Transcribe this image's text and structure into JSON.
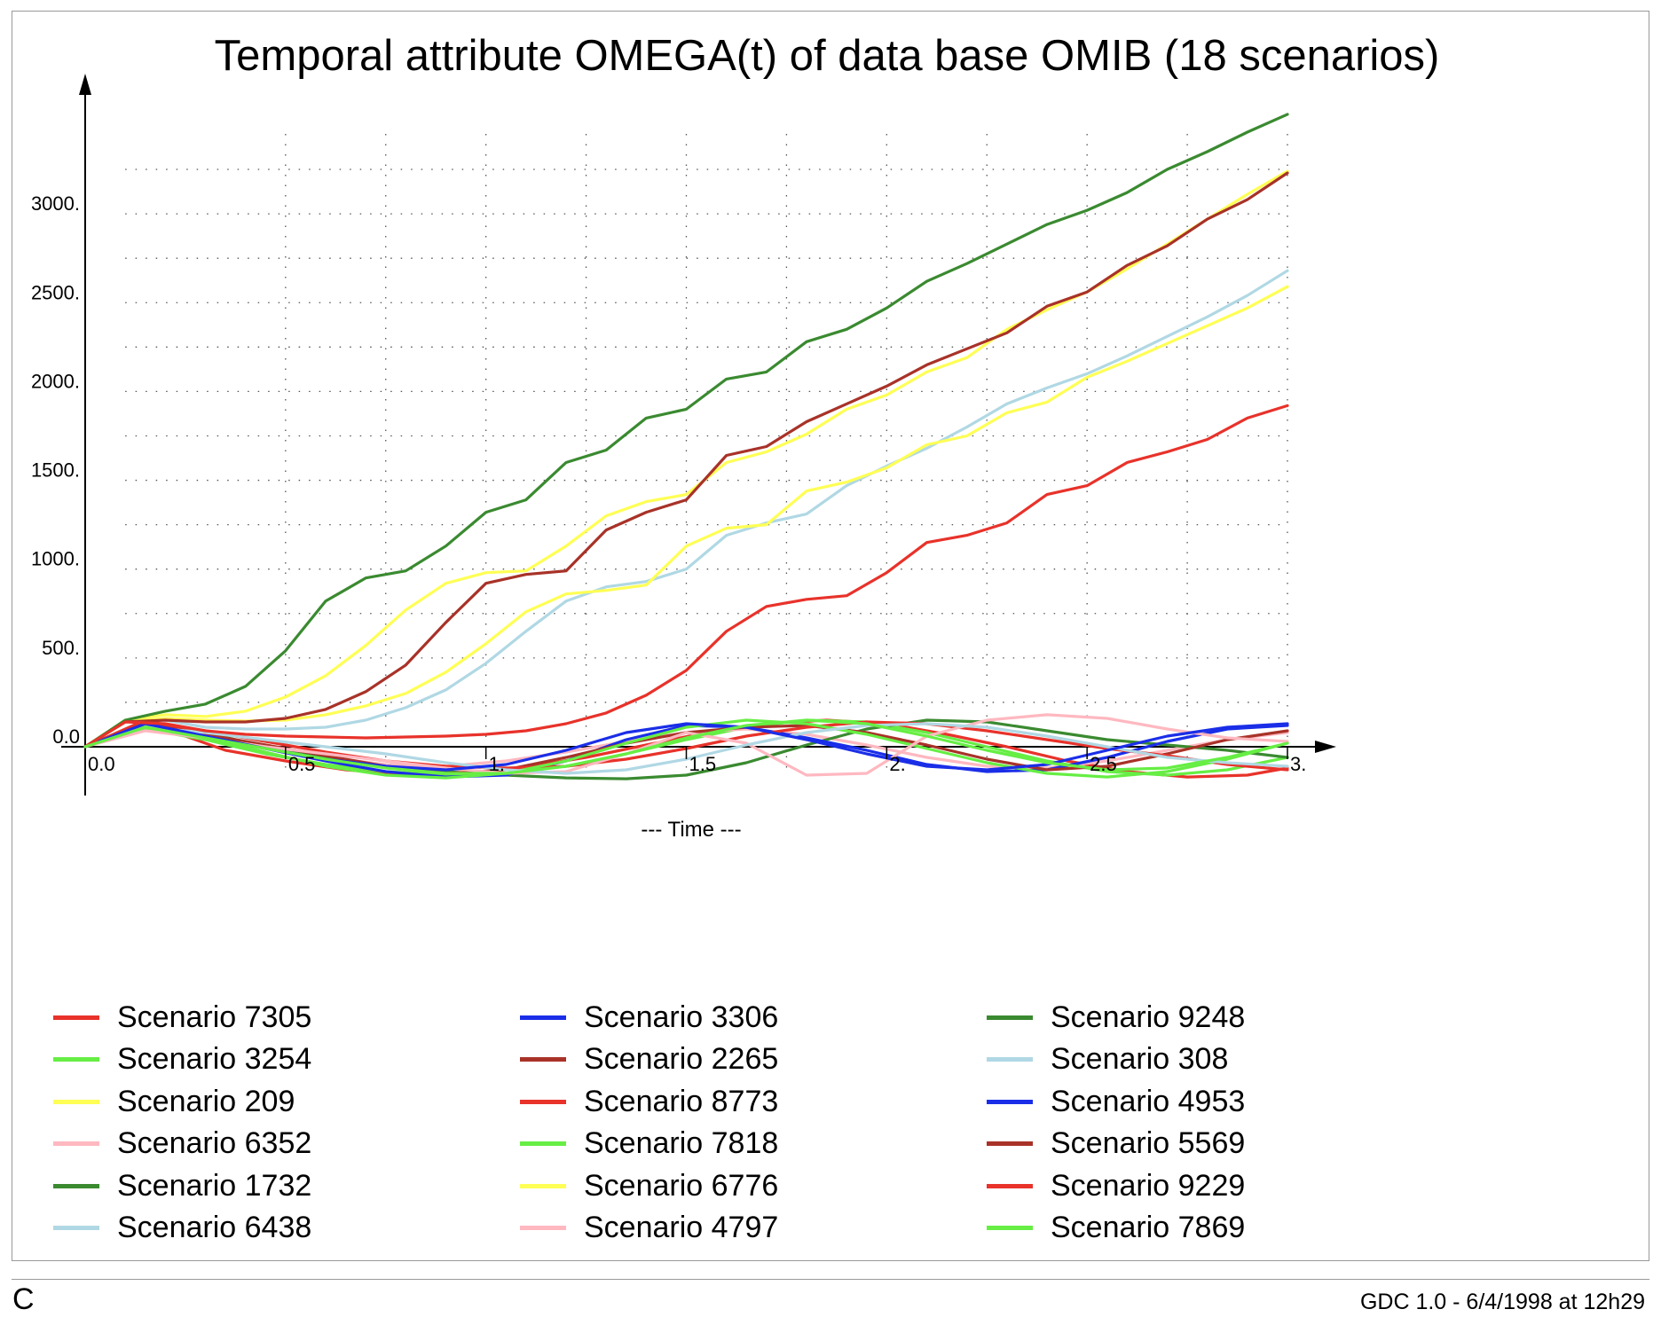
{
  "chart_data": {
    "type": "line",
    "title": "Temporal attribute OMEGA(t) of data base OMIB (18 scenarios)",
    "xlabel": "--- Time ---",
    "ylabel": "",
    "xlim": [
      0,
      3
    ],
    "ylim": [
      -260,
      3780
    ],
    "grid": true,
    "legend_position": "bottom",
    "x_tick_labels": [
      {
        "value": 0,
        "label": "0.0"
      },
      {
        "value": 0.5,
        "label": "0.5"
      },
      {
        "value": 1,
        "label": "1."
      },
      {
        "value": 1.5,
        "label": "1.5"
      },
      {
        "value": 2,
        "label": "2."
      },
      {
        "value": 2.5,
        "label": "2.5"
      },
      {
        "value": 3,
        "label": "3."
      }
    ],
    "y_tick_labels": [
      {
        "value": 0,
        "label": "0.0"
      },
      {
        "value": 500,
        "label": "500."
      },
      {
        "value": 1000,
        "label": "1000."
      },
      {
        "value": 1500,
        "label": "1500."
      },
      {
        "value": 2000,
        "label": "2000."
      },
      {
        "value": 2500,
        "label": "2500."
      },
      {
        "value": 3000,
        "label": "3000."
      }
    ],
    "series": [
      {
        "name": "Scenario 7305",
        "color": "#e8322a",
        "x": [
          0,
          0.15,
          0.25,
          0.35,
          0.5,
          0.65,
          0.8,
          0.95,
          1.1,
          1.25,
          1.4,
          1.55,
          1.7,
          1.85,
          2.0,
          2.15,
          2.3,
          2.45,
          2.6,
          2.75,
          2.9,
          3.0
        ],
        "y": [
          0,
          150,
          60,
          -20,
          -80,
          -130,
          -155,
          -150,
          -115,
          -60,
          10,
          80,
          130,
          150,
          130,
          70,
          0,
          -80,
          -140,
          -170,
          -160,
          -120
        ]
      },
      {
        "name": "Scenario 3254",
        "color": "#66ee44",
        "x": [
          0,
          0.15,
          0.3,
          0.45,
          0.6,
          0.75,
          0.9,
          1.05,
          1.2,
          1.35,
          1.5,
          1.65,
          1.8,
          1.95,
          2.1,
          2.25,
          2.4,
          2.55,
          2.7,
          2.85,
          3.0
        ],
        "y": [
          0,
          100,
          40,
          -40,
          -100,
          -140,
          -160,
          -150,
          -110,
          -40,
          40,
          110,
          150,
          140,
          80,
          0,
          -80,
          -140,
          -160,
          -130,
          -60
        ]
      },
      {
        "name": "Scenario 209",
        "color": "#ffff55",
        "x": [
          0,
          0.1,
          0.2,
          0.3,
          0.4,
          0.5,
          0.6,
          0.7,
          0.8,
          0.9,
          1.0,
          1.1,
          1.2,
          1.3,
          1.4,
          1.5,
          1.6,
          1.7,
          1.8,
          1.9,
          2.0,
          2.1,
          2.2,
          2.3,
          2.4,
          2.5,
          2.6,
          2.7,
          2.8,
          2.9,
          3.0
        ],
        "y": [
          0,
          150,
          180,
          170,
          200,
          280,
          400,
          570,
          770,
          920,
          980,
          990,
          1130,
          1300,
          1380,
          1420,
          1600,
          1660,
          1760,
          1900,
          1980,
          2110,
          2190,
          2350,
          2460,
          2560,
          2690,
          2830,
          2970,
          3110,
          3240
        ]
      },
      {
        "name": "Scenario 6352",
        "color": "#ffb8c0",
        "x": [
          0,
          0.15,
          0.3,
          0.45,
          0.6,
          0.75,
          0.9,
          1.05,
          1.2,
          1.35,
          1.5,
          1.65,
          1.8,
          1.95,
          2.1,
          2.25,
          2.4,
          2.55,
          2.7,
          2.85,
          3.0
        ],
        "y": [
          0,
          110,
          60,
          0,
          -60,
          -100,
          -110,
          -80,
          -30,
          30,
          80,
          100,
          70,
          10,
          -60,
          -110,
          -120,
          -80,
          -20,
          40,
          80
        ]
      },
      {
        "name": "Scenario 1732",
        "color": "#3a8a30",
        "x": [
          0,
          0.15,
          0.3,
          0.45,
          0.6,
          0.75,
          0.9,
          1.05,
          1.2,
          1.35,
          1.5,
          1.65,
          1.8,
          1.95,
          2.1,
          2.25,
          2.4,
          2.55,
          2.7,
          2.85,
          3.0
        ],
        "y": [
          0,
          140,
          80,
          0,
          -60,
          -110,
          -140,
          -160,
          -175,
          -180,
          -160,
          -90,
          10,
          100,
          150,
          140,
          90,
          40,
          10,
          -20,
          -60
        ]
      },
      {
        "name": "Scenario 6438",
        "color": "#b0d8e4",
        "x": [
          0,
          0.1,
          0.2,
          0.3,
          0.4,
          0.5,
          0.6,
          0.7,
          0.8,
          0.9,
          1.0,
          1.1,
          1.2,
          1.3,
          1.4,
          1.5,
          1.6,
          1.7,
          1.8,
          1.9,
          2.0,
          2.1,
          2.2,
          2.3,
          2.4,
          2.5,
          2.6,
          2.7,
          2.8,
          2.9,
          3.0
        ],
        "y": [
          0,
          140,
          150,
          110,
          100,
          100,
          110,
          150,
          220,
          320,
          470,
          650,
          820,
          900,
          930,
          1000,
          1190,
          1260,
          1310,
          1470,
          1580,
          1680,
          1800,
          1930,
          2020,
          2100,
          2200,
          2310,
          2420,
          2540,
          2680
        ]
      },
      {
        "name": "Scenario 3306",
        "color": "#1a2ee8",
        "x": [
          0,
          0.15,
          0.3,
          0.45,
          0.6,
          0.75,
          0.9,
          1.05,
          1.2,
          1.35,
          1.5,
          1.65,
          1.8,
          1.95,
          2.1,
          2.25,
          2.4,
          2.55,
          2.7,
          2.85,
          3.0
        ],
        "y": [
          0,
          120,
          60,
          -10,
          -80,
          -140,
          -170,
          -160,
          -80,
          40,
          120,
          110,
          50,
          -20,
          -100,
          -140,
          -130,
          -60,
          30,
          100,
          120
        ]
      },
      {
        "name": "Scenario 2265",
        "color": "#a83228",
        "x": [
          0,
          0.15,
          0.3,
          0.45,
          0.6,
          0.75,
          0.9,
          1.05,
          1.2,
          1.35,
          1.5,
          1.65,
          1.8,
          1.95,
          2.1,
          2.25,
          2.4,
          2.55,
          2.7,
          2.85,
          3.0
        ],
        "y": [
          0,
          140,
          70,
          10,
          -50,
          -110,
          -150,
          -130,
          -60,
          20,
          80,
          110,
          120,
          80,
          10,
          -70,
          -130,
          -110,
          -40,
          40,
          90
        ]
      },
      {
        "name": "Scenario 8773",
        "color": "#e8322a",
        "x": [
          0,
          0.15,
          0.3,
          0.45,
          0.6,
          0.75,
          0.9,
          1.05,
          1.2,
          1.35,
          1.5,
          1.65,
          1.8,
          1.95,
          2.1,
          2.25,
          2.4,
          2.55,
          2.7,
          2.85,
          3.0
        ],
        "y": [
          0,
          140,
          90,
          30,
          -30,
          -80,
          -110,
          -120,
          -110,
          -70,
          -10,
          60,
          110,
          140,
          130,
          90,
          40,
          -10,
          -50,
          -100,
          -130
        ]
      },
      {
        "name": "Scenario 7818",
        "color": "#66ee44",
        "x": [
          0,
          0.15,
          0.3,
          0.45,
          0.6,
          0.75,
          0.9,
          1.05,
          1.2,
          1.35,
          1.5,
          1.65,
          1.8,
          1.95,
          2.1,
          2.25,
          2.4,
          2.55,
          2.7,
          2.85,
          3.0
        ],
        "y": [
          0,
          120,
          50,
          -30,
          -110,
          -160,
          -175,
          -150,
          -80,
          20,
          110,
          150,
          130,
          70,
          -10,
          -90,
          -150,
          -170,
          -140,
          -70,
          20
        ]
      },
      {
        "name": "Scenario 6776",
        "color": "#ffff55",
        "x": [
          0,
          0.1,
          0.2,
          0.3,
          0.4,
          0.5,
          0.6,
          0.7,
          0.8,
          0.9,
          1.0,
          1.1,
          1.2,
          1.3,
          1.4,
          1.5,
          1.6,
          1.7,
          1.8,
          1.9,
          2.0,
          2.1,
          2.2,
          2.3,
          2.4,
          2.5,
          2.6,
          2.7,
          2.8,
          2.9,
          3.0
        ],
        "y": [
          0,
          140,
          160,
          150,
          145,
          150,
          180,
          230,
          300,
          420,
          580,
          760,
          860,
          880,
          910,
          1130,
          1230,
          1250,
          1440,
          1490,
          1570,
          1700,
          1750,
          1880,
          1940,
          2080,
          2170,
          2270,
          2370,
          2470,
          2590
        ]
      },
      {
        "name": "Scenario 4797",
        "color": "#ffb8c0",
        "x": [
          0,
          0.15,
          0.3,
          0.45,
          0.6,
          0.75,
          0.9,
          1.05,
          1.2,
          1.35,
          1.5,
          1.65,
          1.8,
          1.95,
          2.1,
          2.25,
          2.4,
          2.55,
          2.7,
          2.85,
          3.0
        ],
        "y": [
          0,
          90,
          50,
          0,
          -40,
          -80,
          -120,
          -150,
          -140,
          -40,
          80,
          20,
          -160,
          -150,
          60,
          150,
          180,
          160,
          100,
          50,
          30
        ]
      },
      {
        "name": "Scenario 9248",
        "color": "#3a8a30",
        "x": [
          0,
          0.1,
          0.2,
          0.3,
          0.4,
          0.5,
          0.6,
          0.7,
          0.8,
          0.9,
          1.0,
          1.1,
          1.2,
          1.3,
          1.4,
          1.5,
          1.6,
          1.7,
          1.8,
          1.9,
          2.0,
          2.1,
          2.2,
          2.3,
          2.4,
          2.5,
          2.6,
          2.7,
          2.8,
          2.9,
          3.0
        ],
        "y": [
          0,
          150,
          200,
          240,
          340,
          540,
          820,
          950,
          990,
          1130,
          1320,
          1390,
          1600,
          1670,
          1850,
          1900,
          2070,
          2110,
          2280,
          2350,
          2470,
          2620,
          2720,
          2830,
          2940,
          3020,
          3120,
          3250,
          3350,
          3460,
          3560
        ]
      },
      {
        "name": "Scenario 308",
        "color": "#b0d8e4",
        "x": [
          0,
          0.15,
          0.3,
          0.45,
          0.6,
          0.75,
          0.9,
          1.05,
          1.2,
          1.35,
          1.5,
          1.65,
          1.8,
          1.95,
          2.1,
          2.25,
          2.4,
          2.55,
          2.7,
          2.85,
          3.0
        ],
        "y": [
          0,
          110,
          80,
          40,
          0,
          -40,
          -90,
          -130,
          -150,
          -130,
          -70,
          10,
          80,
          120,
          130,
          110,
          60,
          0,
          -60,
          -90,
          -110
        ]
      },
      {
        "name": "Scenario 4953",
        "color": "#1a2ee8",
        "x": [
          0,
          0.15,
          0.3,
          0.45,
          0.6,
          0.75,
          0.9,
          1.05,
          1.2,
          1.35,
          1.5,
          1.65,
          1.8,
          1.95,
          2.1,
          2.25,
          2.4,
          2.55,
          2.7,
          2.85,
          3.0
        ],
        "y": [
          0,
          130,
          60,
          -10,
          -70,
          -110,
          -130,
          -100,
          -20,
          80,
          130,
          110,
          40,
          -40,
          -110,
          -130,
          -100,
          -20,
          60,
          110,
          130
        ]
      },
      {
        "name": "Scenario 5569",
        "color": "#a83228",
        "x": [
          0,
          0.1,
          0.2,
          0.3,
          0.4,
          0.5,
          0.6,
          0.7,
          0.8,
          0.9,
          1.0,
          1.1,
          1.2,
          1.3,
          1.4,
          1.5,
          1.6,
          1.7,
          1.8,
          1.9,
          2.0,
          2.1,
          2.2,
          2.3,
          2.4,
          2.5,
          2.6,
          2.7,
          2.8,
          2.9,
          3.0
        ],
        "y": [
          0,
          140,
          150,
          140,
          140,
          160,
          210,
          310,
          460,
          700,
          920,
          970,
          990,
          1220,
          1320,
          1390,
          1640,
          1690,
          1830,
          1930,
          2030,
          2150,
          2240,
          2330,
          2480,
          2560,
          2710,
          2820,
          2970,
          3080,
          3230
        ]
      },
      {
        "name": "Scenario 9229",
        "color": "#e8322a",
        "x": [
          0,
          0.1,
          0.2,
          0.3,
          0.4,
          0.5,
          0.6,
          0.7,
          0.8,
          0.9,
          1.0,
          1.1,
          1.2,
          1.3,
          1.4,
          1.5,
          1.6,
          1.7,
          1.8,
          1.9,
          2.0,
          2.1,
          2.2,
          2.3,
          2.4,
          2.5,
          2.6,
          2.7,
          2.8,
          2.9,
          3.0
        ],
        "y": [
          0,
          140,
          130,
          90,
          70,
          60,
          55,
          50,
          55,
          60,
          70,
          90,
          130,
          190,
          290,
          430,
          650,
          790,
          830,
          850,
          980,
          1150,
          1190,
          1260,
          1420,
          1470,
          1600,
          1660,
          1730,
          1850,
          1920
        ]
      },
      {
        "name": "Scenario 7869",
        "color": "#66ee44",
        "x": [
          0,
          0.15,
          0.3,
          0.45,
          0.6,
          0.75,
          0.9,
          1.05,
          1.2,
          1.35,
          1.5,
          1.65,
          1.8,
          1.95,
          2.1,
          2.25,
          2.4,
          2.55,
          2.7,
          2.85,
          3.0
        ],
        "y": [
          0,
          110,
          50,
          -10,
          -70,
          -120,
          -150,
          -150,
          -110,
          -40,
          50,
          120,
          150,
          130,
          60,
          -20,
          -90,
          -130,
          -120,
          -60,
          20
        ]
      }
    ]
  },
  "footer": {
    "corner_label": "C",
    "credit": "GDC 1.0 - 6/4/1998 at 12h29"
  }
}
